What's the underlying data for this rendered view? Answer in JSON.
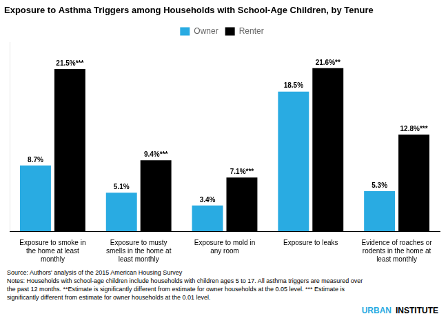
{
  "chart_data": {
    "type": "bar",
    "title": "Exposure to Asthma Triggers among Households with School-Age Children, by Tenure",
    "categories": [
      "Exposure to smoke in\nthe home at least\nmonthly",
      "Exposure to musty\nsmells in the home at\nleast monthly",
      "Exposure to mold in\nany room",
      "Exposure to leaks",
      "Evidence of roaches or\nrodents in the home at\nleast monthly"
    ],
    "series": [
      {
        "name": "Owner",
        "color": "#29ABE2",
        "values": [
          8.7,
          5.1,
          3.4,
          18.5,
          5.3
        ],
        "value_labels": [
          "8.7%",
          "5.1%",
          "3.4%",
          "18.5%",
          "5.3%"
        ]
      },
      {
        "name": "Renter",
        "color": "#000000",
        "values": [
          21.5,
          9.4,
          7.1,
          21.6,
          12.8
        ],
        "value_labels": [
          "21.5%***",
          "9.4%***",
          "7.1%***",
          "21.6%**",
          "12.8%***"
        ]
      }
    ],
    "ylim": [
      0,
      25
    ],
    "grid": false,
    "legend": "top",
    "data_labels": true,
    "tick_labels": "x",
    "notes": [
      "Source: Authors' analysis of the 2015 American Housing Survey",
      "Notes: Households with school-age children include households with children ages 5 to 17. All asthma triggers are measured over",
      "the past 12 months. **Estimate is significantly different from estimate for owner households at the 0.05 level.  *** Estimate is",
      "significantly different from estimate for owner households at the 0.01 level."
    ],
    "credit": [
      {
        "text": "URBAN",
        "color": "#29ABE2"
      },
      {
        "text": "INSTITUTE",
        "color": "#000000"
      }
    ]
  }
}
